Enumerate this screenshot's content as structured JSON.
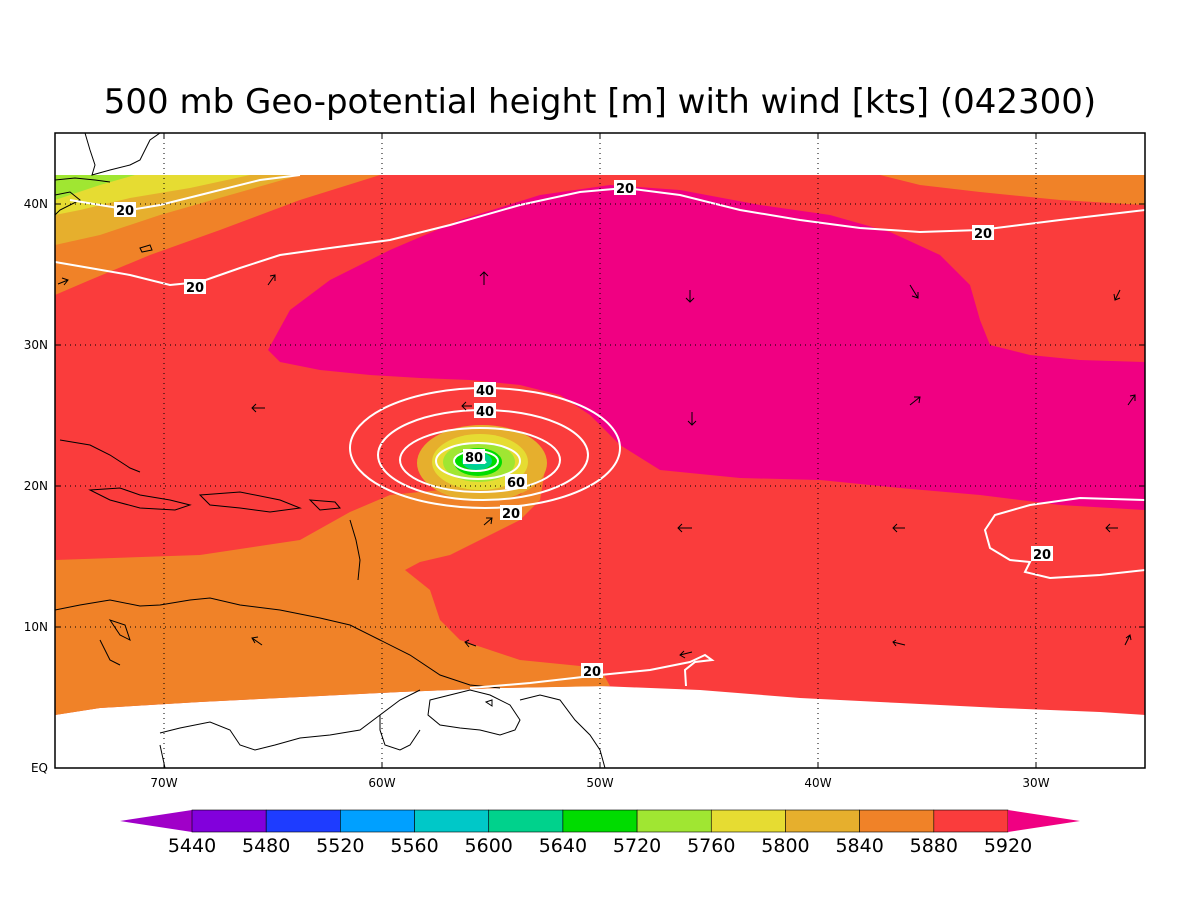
{
  "title": "500 mb Geo-potential height [m] with wind [kts] (042300)",
  "x_ticks": [
    "70W",
    "60W",
    "50W",
    "40W",
    "30W"
  ],
  "y_ticks": [
    "EQ",
    "10N",
    "20N",
    "30N",
    "40N"
  ],
  "colorbar": {
    "labels": [
      "5440",
      "5480",
      "5520",
      "5560",
      "5600",
      "5640",
      "5720",
      "5760",
      "5800",
      "5840",
      "5880",
      "5920"
    ],
    "colors": [
      "#a000c8",
      "#8200dc",
      "#1e3cff",
      "#00a0ff",
      "#00c8c8",
      "#00d28c",
      "#00dc00",
      "#a0e632",
      "#e6dc32",
      "#e6af2d",
      "#f08228",
      "#fa3c3c",
      "#f00082"
    ]
  },
  "contour_labels": [
    "20",
    "40",
    "20",
    "20",
    "20",
    "40",
    "80",
    "60",
    "20",
    "20",
    "20"
  ]
}
